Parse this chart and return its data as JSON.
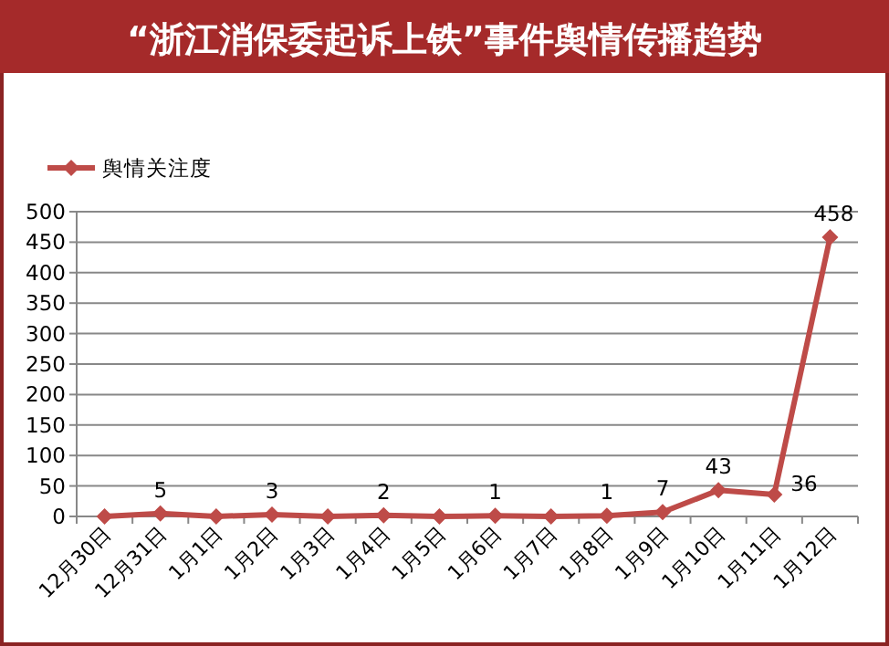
{
  "chart_data": {
    "type": "line",
    "title": "“浙江消保委起诉上铁”事件舆情传播趋势",
    "categories": [
      "12月30日",
      "12月31日",
      "1月1日",
      "1月2日",
      "1月3日",
      "1月4日",
      "1月5日",
      "1月6日",
      "1月7日",
      "1月8日",
      "1月9日",
      "1月10日",
      "1月11日",
      "1月12日"
    ],
    "series": [
      {
        "name": "舆情关注度",
        "color": "#be4b48",
        "values": [
          0,
          5,
          0,
          3,
          0,
          2,
          0,
          1,
          0,
          1,
          7,
          43,
          36,
          458
        ],
        "value_labels": [
          null,
          "5",
          null,
          "3",
          null,
          "2",
          null,
          "1",
          null,
          "1",
          "7",
          "43",
          "36",
          "458"
        ]
      }
    ],
    "ylim": [
      0,
      500
    ],
    "yticks": [
      0,
      50,
      100,
      150,
      200,
      250,
      300,
      350,
      400,
      450,
      500
    ],
    "grid": "y",
    "legend": "top left",
    "marker": "diamond",
    "line_style": "solid"
  }
}
